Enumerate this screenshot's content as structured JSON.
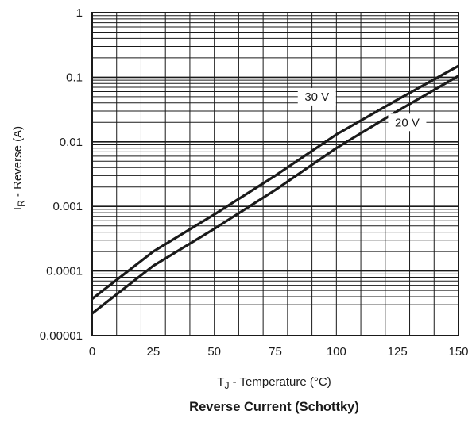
{
  "chart_data": {
    "type": "line",
    "title": "Reverse Current (Schottky)",
    "xlabel": {
      "main": "T",
      "sub": "J",
      "rest": " - Temperature (°C)"
    },
    "ylabel": {
      "main": "I",
      "sub": "R",
      "rest": " - Reverse (A)"
    },
    "xlim": [
      0,
      150
    ],
    "ylim": [
      1e-05,
      1
    ],
    "y_scale": "log",
    "grid": true,
    "x_ticks": [
      {
        "value": 0,
        "label": "0"
      },
      {
        "value": 25,
        "label": "25"
      },
      {
        "value": 50,
        "label": "50"
      },
      {
        "value": 75,
        "label": "75"
      },
      {
        "value": 100,
        "label": "100"
      },
      {
        "value": 125,
        "label": "125"
      },
      {
        "value": 150,
        "label": "150"
      }
    ],
    "y_ticks": [
      {
        "value": 1e-05,
        "label": "0.00001"
      },
      {
        "value": 0.0001,
        "label": "0.0001"
      },
      {
        "value": 0.001,
        "label": "0.001"
      },
      {
        "value": 0.01,
        "label": "0.01"
      },
      {
        "value": 0.1,
        "label": "0.1"
      },
      {
        "value": 1,
        "label": "1"
      }
    ],
    "series": [
      {
        "name": "30 V",
        "x": [
          0,
          25,
          50,
          75,
          100,
          125,
          150
        ],
        "y": [
          3.7e-05,
          0.0002,
          0.00075,
          0.003,
          0.013,
          0.045,
          0.15
        ],
        "label_at": {
          "x": 92,
          "y": 0.05
        }
      },
      {
        "name": "20 V",
        "x": [
          0,
          25,
          50,
          75,
          100,
          125,
          150
        ],
        "y": [
          2.2e-05,
          0.00012,
          0.00045,
          0.0018,
          0.008,
          0.03,
          0.105
        ],
        "label_at": {
          "x": 129,
          "y": 0.02
        }
      }
    ]
  }
}
